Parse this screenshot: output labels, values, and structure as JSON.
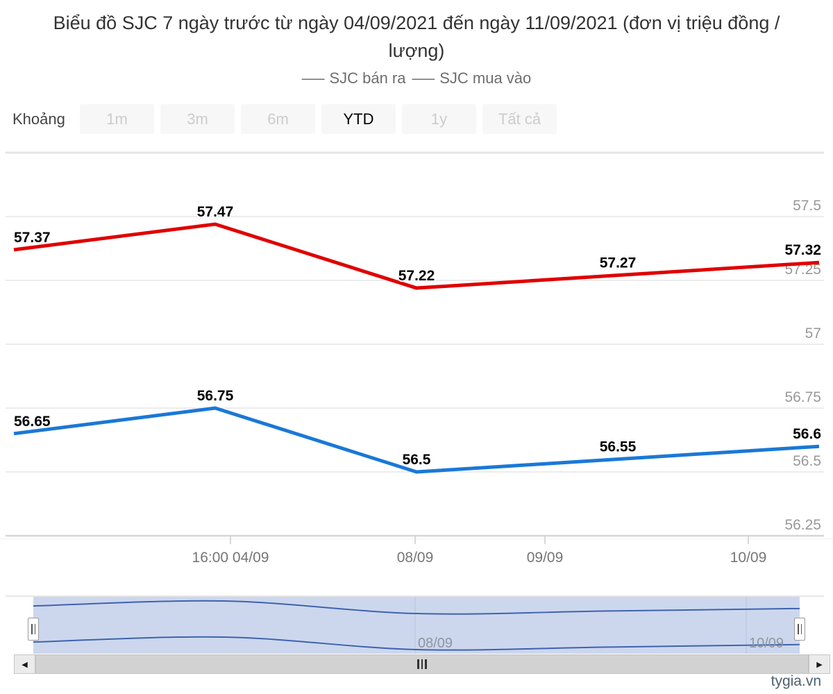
{
  "title": "Biểu đồ SJC 7 ngày trước từ ngày 04/09/2021 đến ngày 11/09/2021 (đơn vị triệu đồng / lượng)",
  "legend": {
    "dash": "–––",
    "items": [
      {
        "label": "SJC bán ra"
      },
      {
        "label": "SJC mua vào"
      }
    ]
  },
  "range_selector": {
    "label": "Khoảng",
    "buttons": [
      {
        "label": "1m",
        "state": "disabled"
      },
      {
        "label": "3m",
        "state": "disabled"
      },
      {
        "label": "6m",
        "state": "disabled"
      },
      {
        "label": "YTD",
        "state": "active"
      },
      {
        "label": "1y",
        "state": "disabled"
      },
      {
        "label": "Tất cả",
        "state": "disabled"
      }
    ]
  },
  "chart_data": {
    "type": "line",
    "title": "Biểu đồ SJC 7 ngày trước từ ngày 04/09/2021 đến ngày 11/09/2021 (đơn vị triệu đồng / lượng)",
    "unit": "triệu đồng / lượng",
    "ylim": [
      56.25,
      57.75
    ],
    "grid": true,
    "legend_position": "top",
    "x_tick_labels": [
      "16:00 04/09",
      "08/09",
      "09/09",
      "10/09"
    ],
    "y_tick_values": [
      57.5,
      57.25,
      57,
      56.75,
      56.5,
      56.25
    ],
    "y_tick_labels": [
      "57.5",
      "57.25",
      "57",
      "56.75",
      "56.5",
      "56.25"
    ],
    "series": [
      {
        "name": "SJC bán ra",
        "color": "#e00000",
        "values": [
          57.37,
          57.47,
          57.22,
          57.27,
          57.32
        ],
        "data_labels": [
          "57.37",
          "57.47",
          "57.22",
          "57.27",
          "57.32"
        ]
      },
      {
        "name": "SJC mua vào",
        "color": "#1a78d6",
        "values": [
          56.65,
          56.75,
          56.5,
          56.55,
          56.6
        ],
        "data_labels": [
          "56.65",
          "56.75",
          "56.5",
          "56.55",
          "56.6"
        ]
      }
    ],
    "navigator": {
      "labels": [
        "08/09",
        "10/09"
      ],
      "line_color": "#3f62ad",
      "mask_color": "#ccd7ee"
    }
  },
  "icons": {
    "scroll_left": "◀",
    "scroll_right": "▶"
  },
  "watermark": "tygia.vn"
}
